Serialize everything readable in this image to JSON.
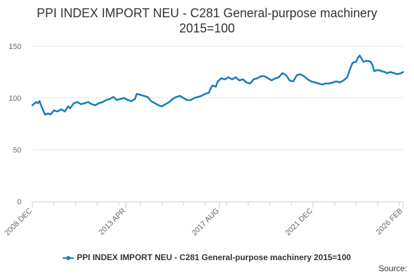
{
  "chart_data": {
    "type": "line",
    "title_line1": "PPI INDEX IMPORT NEU - C281 General-purpose machinery",
    "title_line2": "2015=100",
    "xlabel": "",
    "ylabel": "",
    "ylim": [
      0,
      150
    ],
    "yticks": [
      0,
      50,
      100,
      150
    ],
    "xticks": [
      {
        "label": "2008 DEC",
        "t": "2008-12"
      },
      {
        "label": "2013 APR",
        "t": "2013-04"
      },
      {
        "label": "2017 AUG",
        "t": "2017-08"
      },
      {
        "label": "2021 DEC",
        "t": "2021-12"
      },
      {
        "label": "2026 FEB",
        "t": "2026-02"
      }
    ],
    "xrange": [
      "2008-12",
      "2026-02"
    ],
    "grid": true,
    "legend_position": "bottom",
    "series": [
      {
        "name": "PPI INDEX IMPORT NEU - C281 General-purpose machinery 2015=100",
        "color": "#1a7dba",
        "points": [
          [
            "2008-12",
            93
          ],
          [
            "2009-02",
            96
          ],
          [
            "2009-03",
            95
          ],
          [
            "2009-04",
            97
          ],
          [
            "2009-05",
            92
          ],
          [
            "2009-06",
            88
          ],
          [
            "2009-07",
            84
          ],
          [
            "2009-09",
            85
          ],
          [
            "2009-10",
            84
          ],
          [
            "2009-12",
            88
          ],
          [
            "2010-02",
            87
          ],
          [
            "2010-04",
            89
          ],
          [
            "2010-06",
            87
          ],
          [
            "2010-08",
            92
          ],
          [
            "2010-09",
            90
          ],
          [
            "2010-11",
            95
          ],
          [
            "2011-01",
            96
          ],
          [
            "2011-03",
            94
          ],
          [
            "2011-05",
            95
          ],
          [
            "2011-07",
            96
          ],
          [
            "2011-09",
            94
          ],
          [
            "2011-11",
            93
          ],
          [
            "2012-01",
            95
          ],
          [
            "2012-03",
            96
          ],
          [
            "2012-05",
            98
          ],
          [
            "2012-07",
            99
          ],
          [
            "2012-09",
            101
          ],
          [
            "2012-11",
            98
          ],
          [
            "2013-01",
            99
          ],
          [
            "2013-03",
            100
          ],
          [
            "2013-05",
            98
          ],
          [
            "2013-07",
            97
          ],
          [
            "2013-09",
            99
          ],
          [
            "2013-10",
            104
          ],
          [
            "2013-12",
            103
          ],
          [
            "2014-02",
            102
          ],
          [
            "2014-04",
            101
          ],
          [
            "2014-06",
            97
          ],
          [
            "2014-08",
            95
          ],
          [
            "2014-10",
            93
          ],
          [
            "2014-12",
            92
          ],
          [
            "2015-02",
            94
          ],
          [
            "2015-04",
            96
          ],
          [
            "2015-06",
            99
          ],
          [
            "2015-08",
            101
          ],
          [
            "2015-10",
            102
          ],
          [
            "2015-12",
            100
          ],
          [
            "2016-02",
            98
          ],
          [
            "2016-04",
            98
          ],
          [
            "2016-06",
            100
          ],
          [
            "2016-08",
            101
          ],
          [
            "2016-10",
            102
          ],
          [
            "2016-12",
            104
          ],
          [
            "2017-02",
            105
          ],
          [
            "2017-03",
            109
          ],
          [
            "2017-04",
            112
          ],
          [
            "2017-06",
            111
          ],
          [
            "2017-07",
            116
          ],
          [
            "2017-09",
            119
          ],
          [
            "2017-11",
            118
          ],
          [
            "2018-01",
            120
          ],
          [
            "2018-03",
            118
          ],
          [
            "2018-05",
            120
          ],
          [
            "2018-07",
            117
          ],
          [
            "2018-09",
            118
          ],
          [
            "2018-11",
            115
          ],
          [
            "2019-01",
            114
          ],
          [
            "2019-03",
            118
          ],
          [
            "2019-05",
            119
          ],
          [
            "2019-07",
            121
          ],
          [
            "2019-09",
            121
          ],
          [
            "2019-11",
            119
          ],
          [
            "2020-01",
            117
          ],
          [
            "2020-03",
            119
          ],
          [
            "2020-05",
            120
          ],
          [
            "2020-07",
            124
          ],
          [
            "2020-09",
            122
          ],
          [
            "2020-11",
            117
          ],
          [
            "2021-01",
            116
          ],
          [
            "2021-03",
            122
          ],
          [
            "2021-05",
            123
          ],
          [
            "2021-07",
            121
          ],
          [
            "2021-09",
            118
          ],
          [
            "2021-11",
            116
          ],
          [
            "2022-01",
            115
          ],
          [
            "2022-03",
            114
          ],
          [
            "2022-05",
            113
          ],
          [
            "2022-07",
            114
          ],
          [
            "2022-09",
            114
          ],
          [
            "2022-11",
            115
          ],
          [
            "2023-01",
            116
          ],
          [
            "2023-03",
            115
          ],
          [
            "2023-05",
            117
          ],
          [
            "2023-07",
            120
          ],
          [
            "2023-08",
            125
          ],
          [
            "2023-09",
            130
          ],
          [
            "2023-10",
            134
          ],
          [
            "2023-12",
            135
          ],
          [
            "2024-01",
            139
          ],
          [
            "2024-02",
            141
          ],
          [
            "2024-03",
            138
          ],
          [
            "2024-04",
            135
          ],
          [
            "2024-06",
            136
          ],
          [
            "2024-08",
            135
          ],
          [
            "2024-09",
            132
          ],
          [
            "2024-10",
            126
          ],
          [
            "2024-12",
            127
          ],
          [
            "2025-02",
            126
          ],
          [
            "2025-04",
            125
          ],
          [
            "2025-05",
            124
          ],
          [
            "2025-07",
            125
          ],
          [
            "2025-09",
            124
          ],
          [
            "2025-11",
            123
          ],
          [
            "2026-01",
            124
          ],
          [
            "2026-02",
            125
          ]
        ]
      }
    ]
  },
  "legend": {
    "label": "PPI INDEX IMPORT NEU - C281 General-purpose machinery 2015=100"
  },
  "source": {
    "label": "Source:"
  }
}
